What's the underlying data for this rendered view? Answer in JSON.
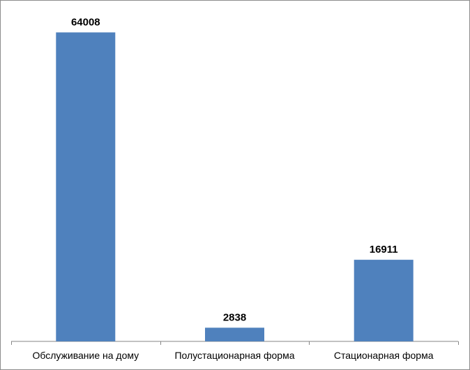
{
  "chart_data": {
    "type": "bar",
    "categories": [
      "Обслуживание на дому",
      "Полустационарная форма",
      "Стационарная форма"
    ],
    "values": [
      64008,
      2838,
      16911
    ],
    "data_labels": [
      "64008",
      "2838",
      "16911"
    ],
    "ylim": [
      0,
      70000
    ],
    "grid": false,
    "legend": "none",
    "bar_color": "#4f81bd",
    "axis_color": "#868686"
  }
}
